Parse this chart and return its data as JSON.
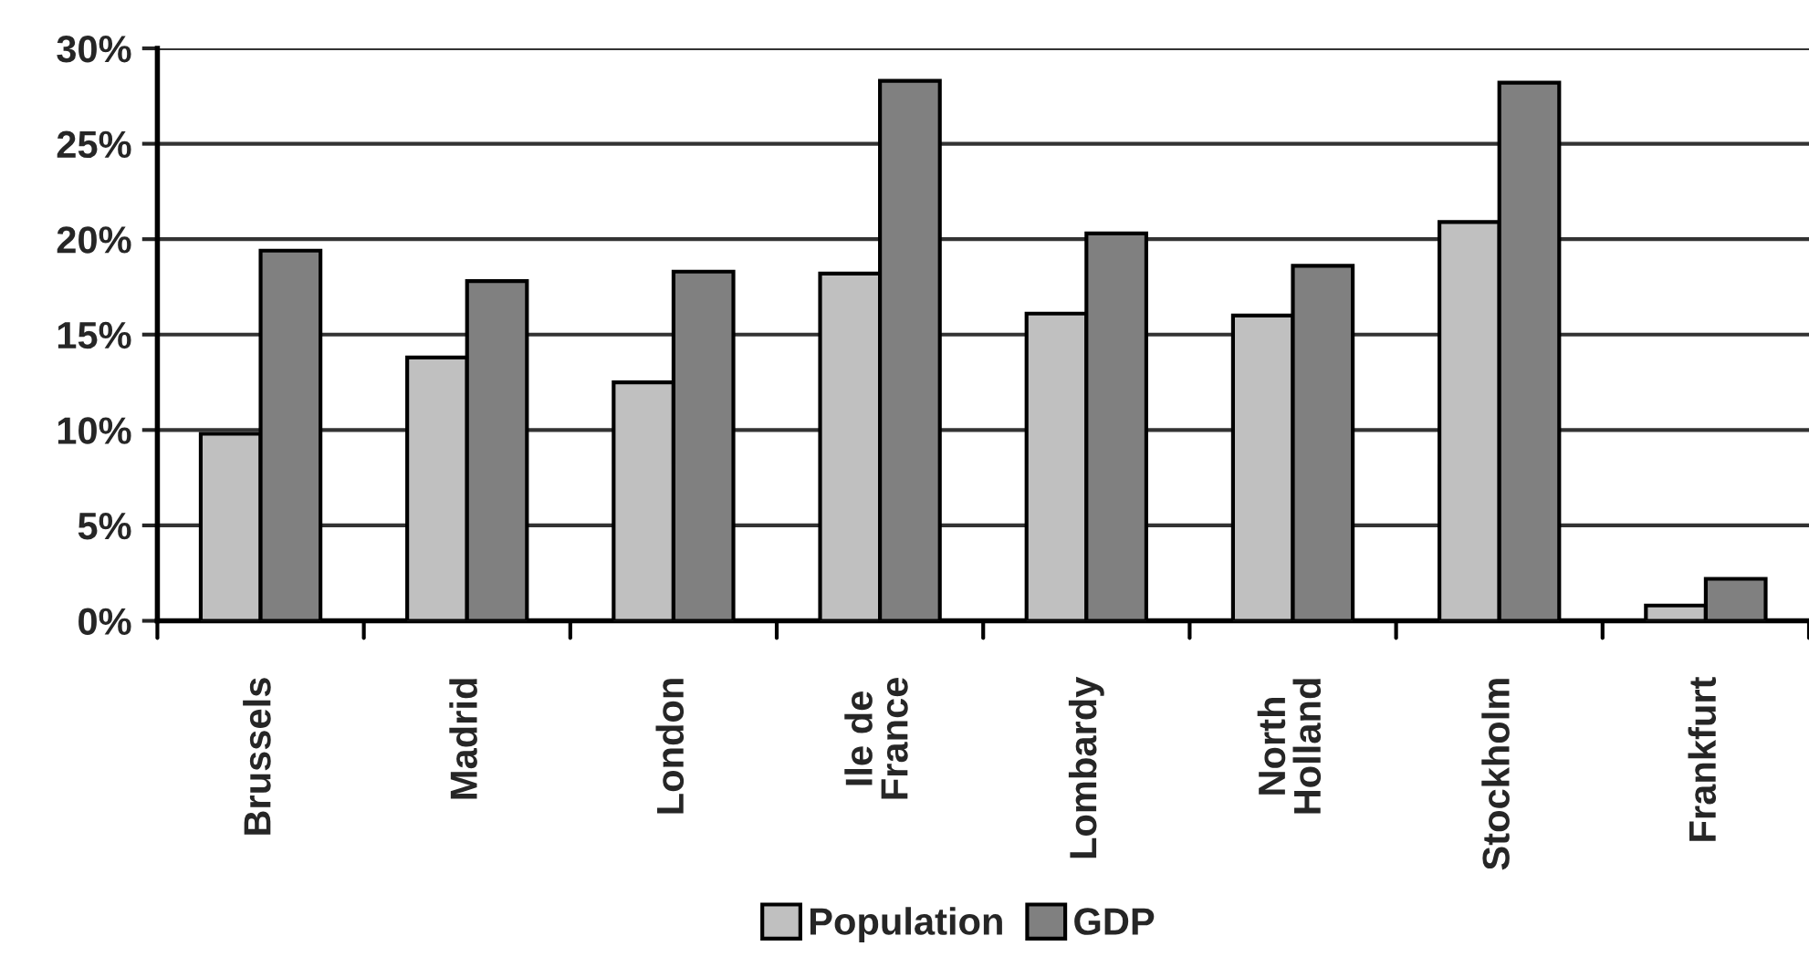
{
  "chart_data": {
    "type": "bar",
    "categories": [
      "Brussels",
      "Madrid",
      "London",
      "Ile de\nFrance",
      "Lombardy",
      "North\nHolland",
      "Stockholm",
      "Frankfurt"
    ],
    "series": [
      {
        "name": "Population",
        "color": "#c0c0c0",
        "values": [
          9.8,
          13.8,
          12.5,
          18.2,
          16.1,
          16.0,
          20.9,
          0.8
        ]
      },
      {
        "name": "GDP",
        "color": "#808080",
        "values": [
          19.4,
          17.8,
          18.3,
          28.3,
          20.3,
          18.6,
          28.2,
          2.2
        ]
      }
    ],
    "ylim": [
      0,
      30
    ],
    "yticks": [
      {
        "value": 0,
        "label": "0%"
      },
      {
        "value": 5,
        "label": "5%"
      },
      {
        "value": 10,
        "label": "10%"
      },
      {
        "value": 15,
        "label": "15%"
      },
      {
        "value": 20,
        "label": "20%"
      },
      {
        "value": 25,
        "label": "25%"
      },
      {
        "value": 30,
        "label": "30%"
      }
    ],
    "grid": "y",
    "legend": "bottom"
  }
}
